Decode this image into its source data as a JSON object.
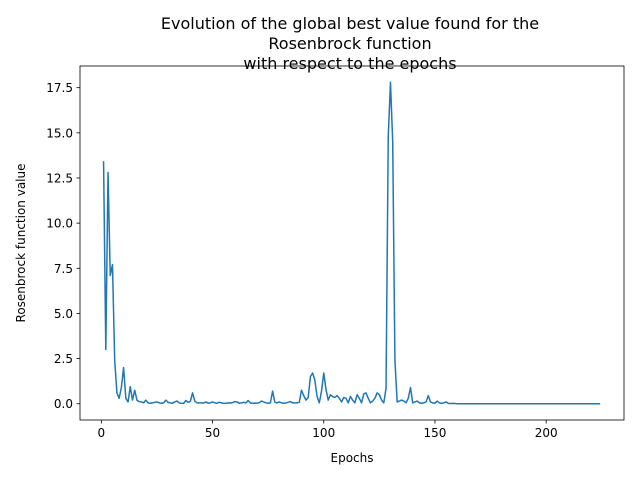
{
  "chart_data": {
    "type": "line",
    "title": [
      "Evolution of the global best value found for the",
      "Rosenbrock function",
      "with respect to the epochs"
    ],
    "xlabel": "Epochs",
    "ylabel": "Rosenbrock function value",
    "xlim": [
      -9.6,
      235
    ],
    "ylim": [
      -0.9,
      18.7
    ],
    "xticks": [
      0,
      50,
      100,
      150,
      200
    ],
    "xtick_labels": [
      "0",
      "50",
      "100",
      "150",
      "200"
    ],
    "yticks": [
      0,
      2.5,
      5,
      7.5,
      10,
      12.5,
      15,
      17.5
    ],
    "ytick_labels": [
      "0.0",
      "2.5",
      "5.0",
      "7.5",
      "10.0",
      "12.5",
      "15.0",
      "17.5"
    ],
    "grid": false,
    "line_color": "#1f77b4",
    "series": [
      {
        "points": [
          [
            1,
            13.4
          ],
          [
            2,
            3.0
          ],
          [
            3,
            12.8
          ],
          [
            4,
            7.1
          ],
          [
            5,
            7.7
          ],
          [
            6,
            2.4
          ],
          [
            7,
            0.6
          ],
          [
            8,
            0.3
          ],
          [
            9,
            0.9
          ],
          [
            10,
            2.0
          ],
          [
            11,
            0.3
          ],
          [
            12,
            0.1
          ],
          [
            13,
            0.95
          ],
          [
            14,
            0.2
          ],
          [
            15,
            0.75
          ],
          [
            16,
            0.2
          ],
          [
            17,
            0.12
          ],
          [
            18,
            0.1
          ],
          [
            19,
            0.05
          ],
          [
            20,
            0.2
          ],
          [
            21,
            0.05
          ],
          [
            22,
            0.03
          ],
          [
            23,
            0.05
          ],
          [
            24,
            0.08
          ],
          [
            25,
            0.1
          ],
          [
            26,
            0.05
          ],
          [
            27,
            0.03
          ],
          [
            28,
            0.05
          ],
          [
            29,
            0.2
          ],
          [
            30,
            0.08
          ],
          [
            31,
            0.05
          ],
          [
            32,
            0.03
          ],
          [
            33,
            0.1
          ],
          [
            34,
            0.15
          ],
          [
            35,
            0.05
          ],
          [
            36,
            0.03
          ],
          [
            37,
            0.02
          ],
          [
            38,
            0.18
          ],
          [
            39,
            0.08
          ],
          [
            40,
            0.12
          ],
          [
            41,
            0.6
          ],
          [
            42,
            0.15
          ],
          [
            43,
            0.05
          ],
          [
            44,
            0.05
          ],
          [
            45,
            0.05
          ],
          [
            46,
            0.04
          ],
          [
            47,
            0.1
          ],
          [
            48,
            0.03
          ],
          [
            49,
            0.05
          ],
          [
            50,
            0.1
          ],
          [
            51,
            0.05
          ],
          [
            52,
            0.03
          ],
          [
            53,
            0.08
          ],
          [
            54,
            0.05
          ],
          [
            55,
            0.02
          ],
          [
            56,
            0.03
          ],
          [
            57,
            0.05
          ],
          [
            58,
            0.04
          ],
          [
            59,
            0.06
          ],
          [
            60,
            0.12
          ],
          [
            61,
            0.1
          ],
          [
            62,
            0.03
          ],
          [
            63,
            0.05
          ],
          [
            64,
            0.08
          ],
          [
            65,
            0.05
          ],
          [
            66,
            0.18
          ],
          [
            67,
            0.05
          ],
          [
            68,
            0.02
          ],
          [
            69,
            0.04
          ],
          [
            70,
            0.03
          ],
          [
            71,
            0.05
          ],
          [
            72,
            0.15
          ],
          [
            73,
            0.1
          ],
          [
            74,
            0.05
          ],
          [
            75,
            0.03
          ],
          [
            76,
            0.05
          ],
          [
            77,
            0.7
          ],
          [
            78,
            0.08
          ],
          [
            79,
            0.05
          ],
          [
            80,
            0.1
          ],
          [
            81,
            0.05
          ],
          [
            82,
            0.03
          ],
          [
            83,
            0.05
          ],
          [
            84,
            0.08
          ],
          [
            85,
            0.12
          ],
          [
            86,
            0.05
          ],
          [
            87,
            0.05
          ],
          [
            88,
            0.05
          ],
          [
            89,
            0.08
          ],
          [
            90,
            0.75
          ],
          [
            91,
            0.45
          ],
          [
            92,
            0.2
          ],
          [
            93,
            0.35
          ],
          [
            94,
            1.5
          ],
          [
            95,
            1.7
          ],
          [
            96,
            1.3
          ],
          [
            97,
            0.4
          ],
          [
            98,
            0.05
          ],
          [
            99,
            0.7
          ],
          [
            100,
            1.7
          ],
          [
            101,
            0.8
          ],
          [
            102,
            0.2
          ],
          [
            103,
            0.5
          ],
          [
            104,
            0.4
          ],
          [
            105,
            0.35
          ],
          [
            106,
            0.45
          ],
          [
            107,
            0.3
          ],
          [
            108,
            0.1
          ],
          [
            109,
            0.35
          ],
          [
            110,
            0.3
          ],
          [
            111,
            0.05
          ],
          [
            112,
            0.4
          ],
          [
            113,
            0.2
          ],
          [
            114,
            0.05
          ],
          [
            115,
            0.5
          ],
          [
            116,
            0.3
          ],
          [
            117,
            0.05
          ],
          [
            118,
            0.55
          ],
          [
            119,
            0.6
          ],
          [
            120,
            0.3
          ],
          [
            121,
            0.05
          ],
          [
            122,
            0.15
          ],
          [
            123,
            0.3
          ],
          [
            124,
            0.6
          ],
          [
            125,
            0.5
          ],
          [
            126,
            0.2
          ],
          [
            127,
            0.05
          ],
          [
            128,
            0.85
          ],
          [
            129,
            14.8
          ],
          [
            130,
            17.8
          ],
          [
            131,
            14.5
          ],
          [
            132,
            2.4
          ],
          [
            133,
            0.1
          ],
          [
            134,
            0.15
          ],
          [
            135,
            0.2
          ],
          [
            136,
            0.15
          ],
          [
            137,
            0.05
          ],
          [
            138,
            0.3
          ],
          [
            139,
            0.9
          ],
          [
            140,
            0.05
          ],
          [
            141,
            0.1
          ],
          [
            142,
            0.15
          ],
          [
            143,
            0.05
          ],
          [
            144,
            0.03
          ],
          [
            145,
            0.05
          ],
          [
            146,
            0.1
          ],
          [
            147,
            0.45
          ],
          [
            148,
            0.1
          ],
          [
            149,
            0.05
          ],
          [
            150,
            0.03
          ],
          [
            151,
            0.15
          ],
          [
            152,
            0.05
          ],
          [
            153,
            0.02
          ],
          [
            154,
            0.05
          ],
          [
            155,
            0.1
          ],
          [
            156,
            0.02
          ],
          [
            157,
            0.01
          ],
          [
            158,
            0.02
          ],
          [
            159,
            0.01
          ],
          [
            160,
            0.0
          ],
          [
            170,
            0.0
          ],
          [
            180,
            0.0
          ],
          [
            190,
            0.0
          ],
          [
            200,
            0.0
          ],
          [
            210,
            0.0
          ],
          [
            220,
            0.0
          ],
          [
            224,
            0.0
          ]
        ]
      }
    ]
  }
}
